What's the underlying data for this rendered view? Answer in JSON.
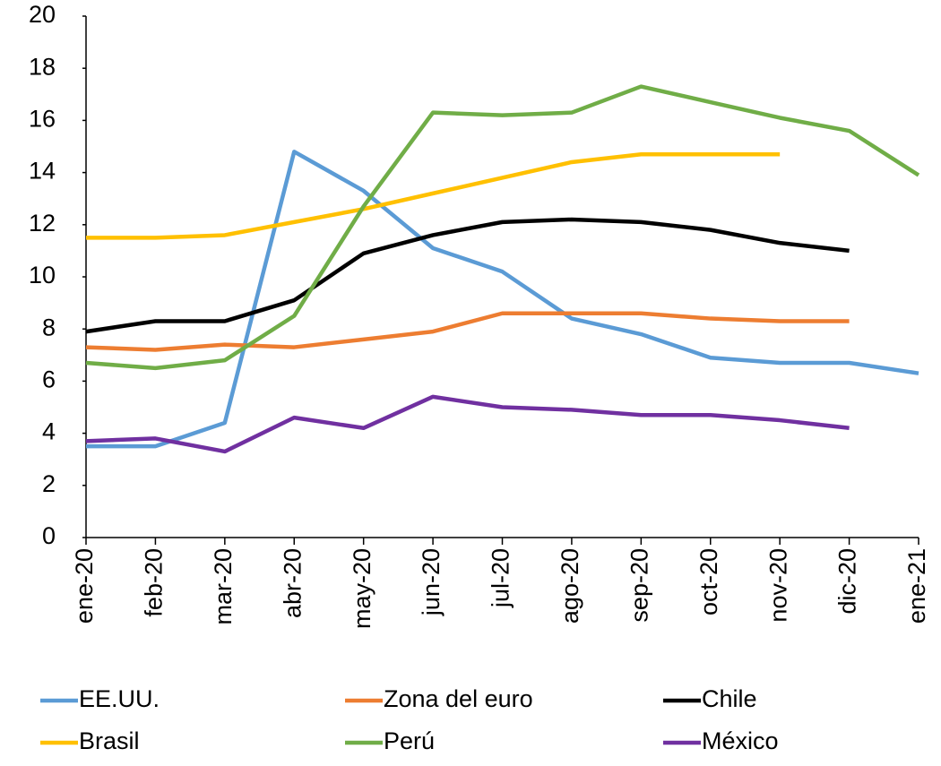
{
  "chart_data": {
    "type": "line",
    "categories": [
      "ene-20",
      "feb-20",
      "mar-20",
      "abr-20",
      "may-20",
      "jun-20",
      "jul-20",
      "ago-20",
      "sep-20",
      "oct-20",
      "nov-20",
      "dic-20",
      "ene-21"
    ],
    "series": [
      {
        "name": "EE.UU.",
        "color": "#5b9bd5",
        "values": [
          3.5,
          3.5,
          4.4,
          14.8,
          13.3,
          11.1,
          10.2,
          8.4,
          7.8,
          6.9,
          6.7,
          6.7,
          6.3
        ]
      },
      {
        "name": "Zona del euro",
        "color": "#ed7d31",
        "values": [
          7.3,
          7.2,
          7.4,
          7.3,
          7.6,
          7.9,
          8.6,
          8.6,
          8.6,
          8.4,
          8.3,
          8.3,
          null
        ]
      },
      {
        "name": "Chile",
        "color": "#000000",
        "values": [
          7.9,
          8.3,
          8.3,
          9.1,
          10.9,
          11.6,
          12.1,
          12.2,
          12.1,
          11.8,
          11.3,
          11.0,
          null
        ]
      },
      {
        "name": "Brasil",
        "color": "#ffc000",
        "values": [
          11.5,
          11.5,
          11.6,
          12.1,
          12.6,
          13.2,
          13.8,
          14.4,
          14.7,
          14.7,
          14.7,
          null,
          null
        ]
      },
      {
        "name": "Perú",
        "color": "#70ad47",
        "values": [
          6.7,
          6.5,
          6.8,
          8.5,
          12.7,
          16.3,
          16.2,
          16.3,
          17.3,
          16.7,
          16.1,
          15.6,
          13.9
        ]
      },
      {
        "name": "México",
        "color": "#7030a0",
        "values": [
          3.7,
          3.8,
          3.3,
          4.6,
          4.2,
          5.4,
          5.0,
          4.9,
          4.7,
          4.7,
          4.5,
          4.2,
          null
        ]
      }
    ],
    "ylim": [
      0,
      20
    ],
    "yticks": [
      0,
      2,
      4,
      6,
      8,
      10,
      12,
      14,
      16,
      18,
      20
    ],
    "grid": false
  }
}
